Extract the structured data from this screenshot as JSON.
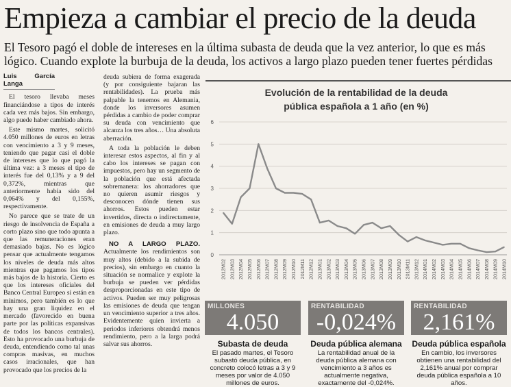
{
  "headline": "Empieza a cambiar el precio de la deuda",
  "subhead": "El Tesoro pagó el doble de intereses en la última subasta de deuda que la vez anterior, lo que es más lógico. Cuando explote la burbuja de la deuda, los activos a largo plazo pueden tener fuertes pérdidas",
  "byline": "Luis García Langa",
  "col1": [
    "El tesoro llevaba meses financiándose a tipos de interés cada vez más bajos. Sin embargo, algo puede haber cambiado ahora.",
    "Este mismo martes, solicitó 4.050 millones de euros en letras con vencimiento a 3 y 9 meses, teniendo que pagar casi el doble de intereses que lo que pagó la última vez: a 3 meses el tipo de interés fue del 0,13% y a 9 del 0,372%, mientras que anteriormente había sido del 0,064% y del 0,155%, respectivamente.",
    "No parece que se trate de un riesgo de insolvencia de España a corto plazo sino que todo apunta a que las remuneraciones eran demasiado bajas. No es lógico pensar que actualmente tengamos los niveles de deuda más altos mientras que pagamos los tipos más bajos de la historia. Cierto es que los intereses oficiales del Banco Central Europeo sí están en mínimos, pero también es lo que hay una gran liquidez en el mercado (favorecido en buena parte por las políticas expansivas de todos los bancos centrales). Esto ha provocado una burbuja de deuda, entendiendo como tal unas compras masivas, en muchos casos irracionales, que han provocado que los precios de la"
  ],
  "col2": [
    "deuda subiera de forma exagerada (y por consiguiente bajaran las rentabilidades). La prueba más palpable la tenemos en Alemania, donde los inversores asumen pérdidas a cambio de poder comprar su deuda con vencimiento que alcanza los tres años… Una absoluta aberración.",
    "A toda la población le deben interesar estos aspectos, al fin y al cabo los intereses se pagan con impuestos, pero hay un segmento de la población que está afectada sobremanera: los ahorradores que no quieren asumir riesgos y desconocen dónde tienen sus ahorros. Estos pueden estar invertidos, directa o indirectamente, en emisiones de deuda a muy largo plazo."
  ],
  "col2_subtitle": "NO A LARGO PLAZO.",
  "col2_after": "Actualmente los rendimientos son muy altos (debido a la subida de precios), sin embargo en cuanto la situación se normalice y explote la burbuja se pueden ver pérdidas desproporcionadas en este tipo de activos. Pueden ser muy peligrosas las emisiones de deuda que tengan un vencimiento superior a tres años. Evidentemente quien invierta a periodos inferiores obtendrá menos rendimiento, pero a la larga podrá salvar sus ahorros.",
  "chart_title_1": "Evolución de la rentabilidad de la deuda",
  "chart_title_2": "pública española a 1 año (en %)",
  "chart_data": {
    "type": "line",
    "title": "Evolución de la rentabilidad de la deuda pública española a 1 año (en %)",
    "ylim": [
      0,
      6
    ],
    "yticks": [
      0,
      1,
      2,
      3,
      4,
      5,
      6
    ],
    "grid": true,
    "color": "#8a8a8a",
    "x": [
      "2012M02",
      "2012M03",
      "2012M04",
      "2012M05",
      "2012M06",
      "2012M07",
      "2012M08",
      "2012M09",
      "2012M10",
      "2012M11",
      "2012M12",
      "2013M01",
      "2013M02",
      "2013M03",
      "2013M04",
      "2013M05",
      "2013M06",
      "2013M07",
      "2013M08",
      "2013M09",
      "2013M10",
      "2013M11",
      "2013M12",
      "2014M01",
      "2014M02",
      "2014M03",
      "2014M04",
      "2014M05",
      "2014M06",
      "2014M07",
      "2014M08",
      "2014M09",
      "2014M10"
    ],
    "values": [
      1.9,
      1.4,
      2.6,
      3.0,
      5.0,
      3.9,
      3.0,
      2.8,
      2.8,
      2.75,
      2.5,
      1.45,
      1.55,
      1.3,
      1.2,
      0.95,
      1.35,
      1.45,
      1.2,
      1.3,
      0.9,
      0.6,
      0.8,
      0.65,
      0.55,
      0.45,
      0.5,
      0.5,
      0.3,
      0.2,
      0.12,
      0.15,
      0.35
    ]
  },
  "stats": [
    {
      "label": "MILLONES",
      "value": "4.050",
      "title": "Subasta de deuda",
      "desc": "El pasado martes, el Tesoro subastó deuda pública, en concreto colocó letras a 3 y 9 meses por valor de 4.050 millones de euros."
    },
    {
      "label": "RENTABILIDAD",
      "value": "-0,024%",
      "title": "Deuda pública alemana",
      "desc": "La rentabilidad anual de la deuda pública alemana con vencimiento a 3 años es actualmente negativa, exactamente del -0,024%."
    },
    {
      "label": "RENTABILIDAD",
      "value": "2,161%",
      "title": "Deuda pública española",
      "desc": "En cambio, los inversores obtienen una rentabilidad del 2,161% anual por comprar deuda pública española a 10 años."
    }
  ]
}
